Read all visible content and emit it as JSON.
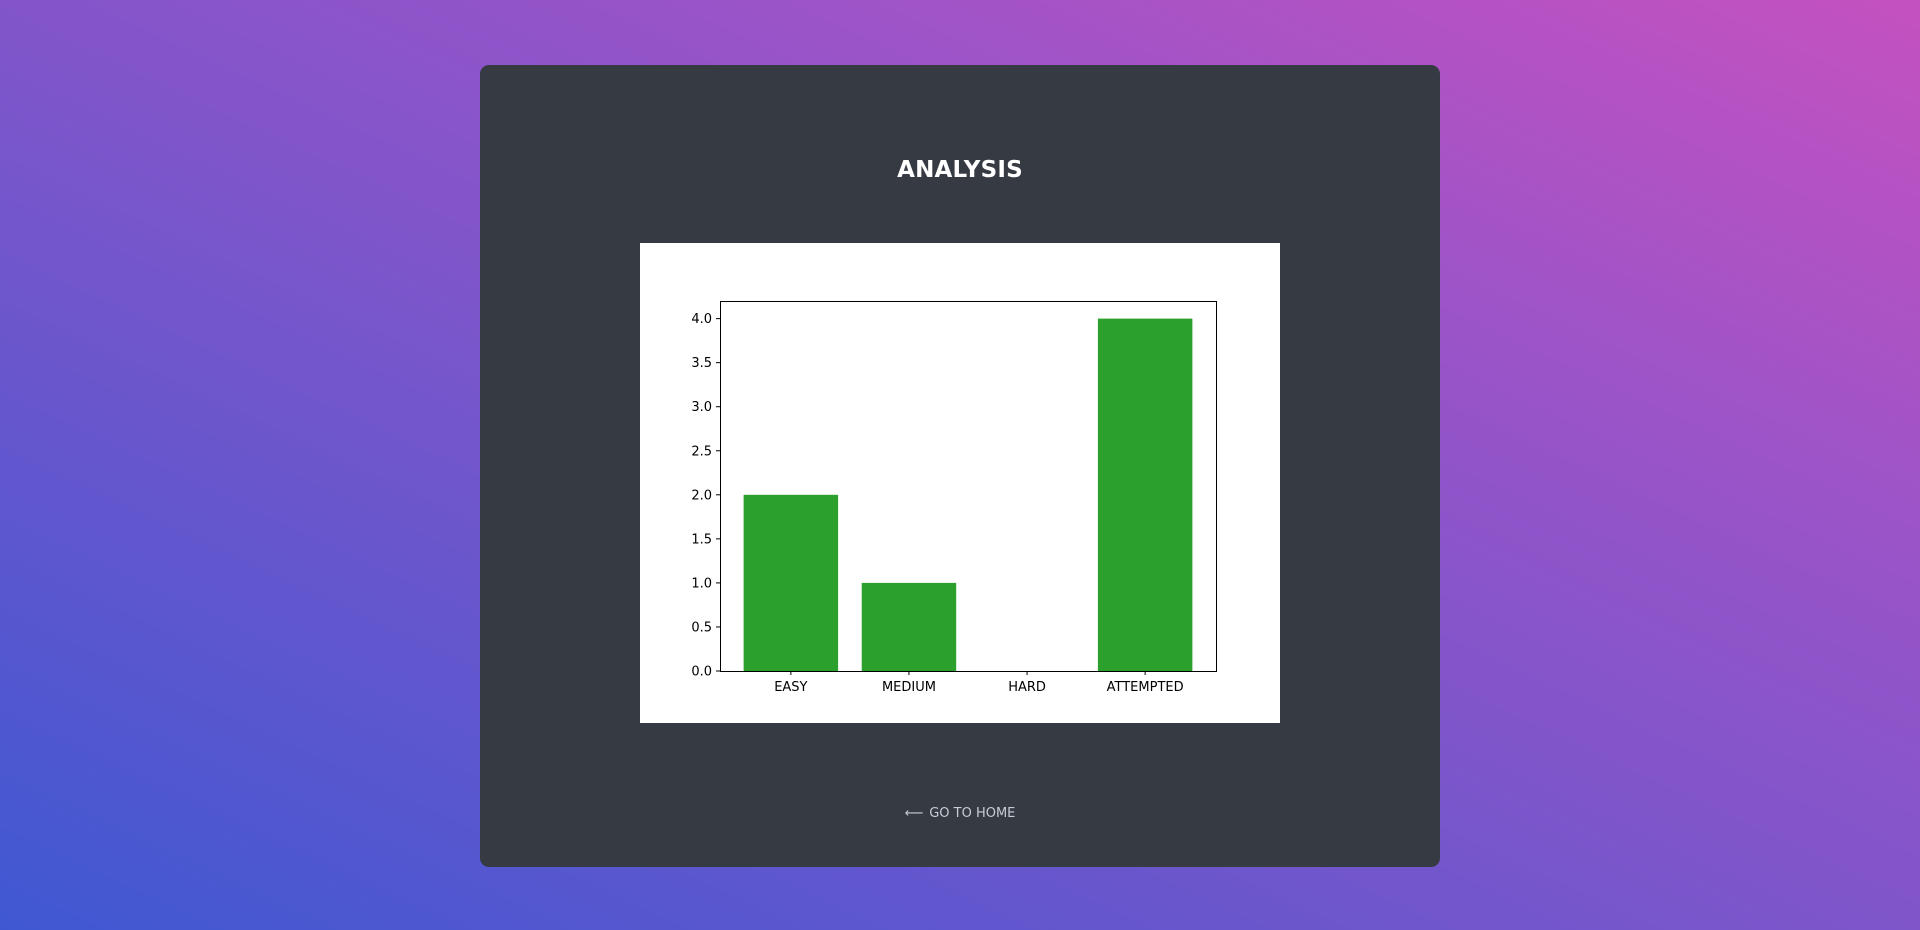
{
  "page": {
    "title": "ANALYSIS",
    "home_link": {
      "arrow_icon": "arrow-left-icon",
      "arrow_glyph": "⟵",
      "label": "GO TO HOME"
    }
  },
  "colors": {
    "background_start": "#3f58d2",
    "background_end": "#c551c0",
    "card": "#363a43",
    "bar": "#2ca02c"
  },
  "chart_data": {
    "type": "bar",
    "categories": [
      "EASY",
      "MEDIUM",
      "HARD",
      "ATTEMPTED"
    ],
    "values": [
      2,
      1,
      0,
      4
    ],
    "ylim": [
      0,
      4.2
    ],
    "yticks": [
      "0.0",
      "0.5",
      "1.0",
      "1.5",
      "2.0",
      "2.5",
      "3.0",
      "3.5",
      "4.0"
    ],
    "ytick_values": [
      0,
      0.5,
      1,
      1.5,
      2,
      2.5,
      3,
      3.5,
      4
    ],
    "title": "",
    "xlabel": "",
    "ylabel": "",
    "grid": false,
    "bar_color": "#2ca02c"
  }
}
